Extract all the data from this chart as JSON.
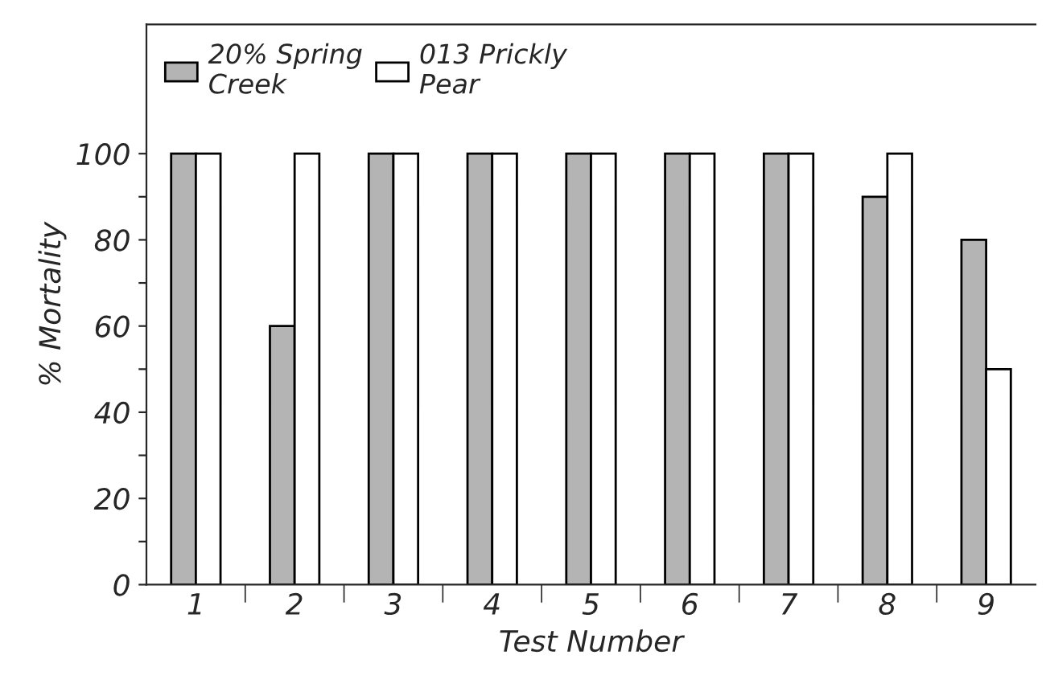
{
  "chart_data": {
    "type": "bar",
    "xlabel": "Test Number",
    "ylabel": "% Mortality",
    "categories": [
      "1",
      "2",
      "3",
      "4",
      "5",
      "6",
      "7",
      "8",
      "9"
    ],
    "series": [
      {
        "name": "20% Spring\nCreek",
        "color": "#b4b4b4",
        "values": [
          100,
          60,
          100,
          100,
          100,
          100,
          100,
          90,
          80
        ]
      },
      {
        "name": "013 Prickly\nPear",
        "color": "#ffffff",
        "values": [
          100,
          100,
          100,
          100,
          100,
          100,
          100,
          100,
          50
        ]
      }
    ],
    "ylim": [
      0,
      130
    ],
    "yticks": [
      0,
      {
        "value": 10,
        "label": null
      },
      20,
      {
        "value": 30,
        "label": null
      },
      40,
      {
        "value": 50,
        "label": null
      },
      60,
      {
        "value": 70,
        "label": null
      },
      80,
      {
        "value": 90,
        "label": null
      },
      100
    ],
    "legend": "top left",
    "grid": false
  }
}
